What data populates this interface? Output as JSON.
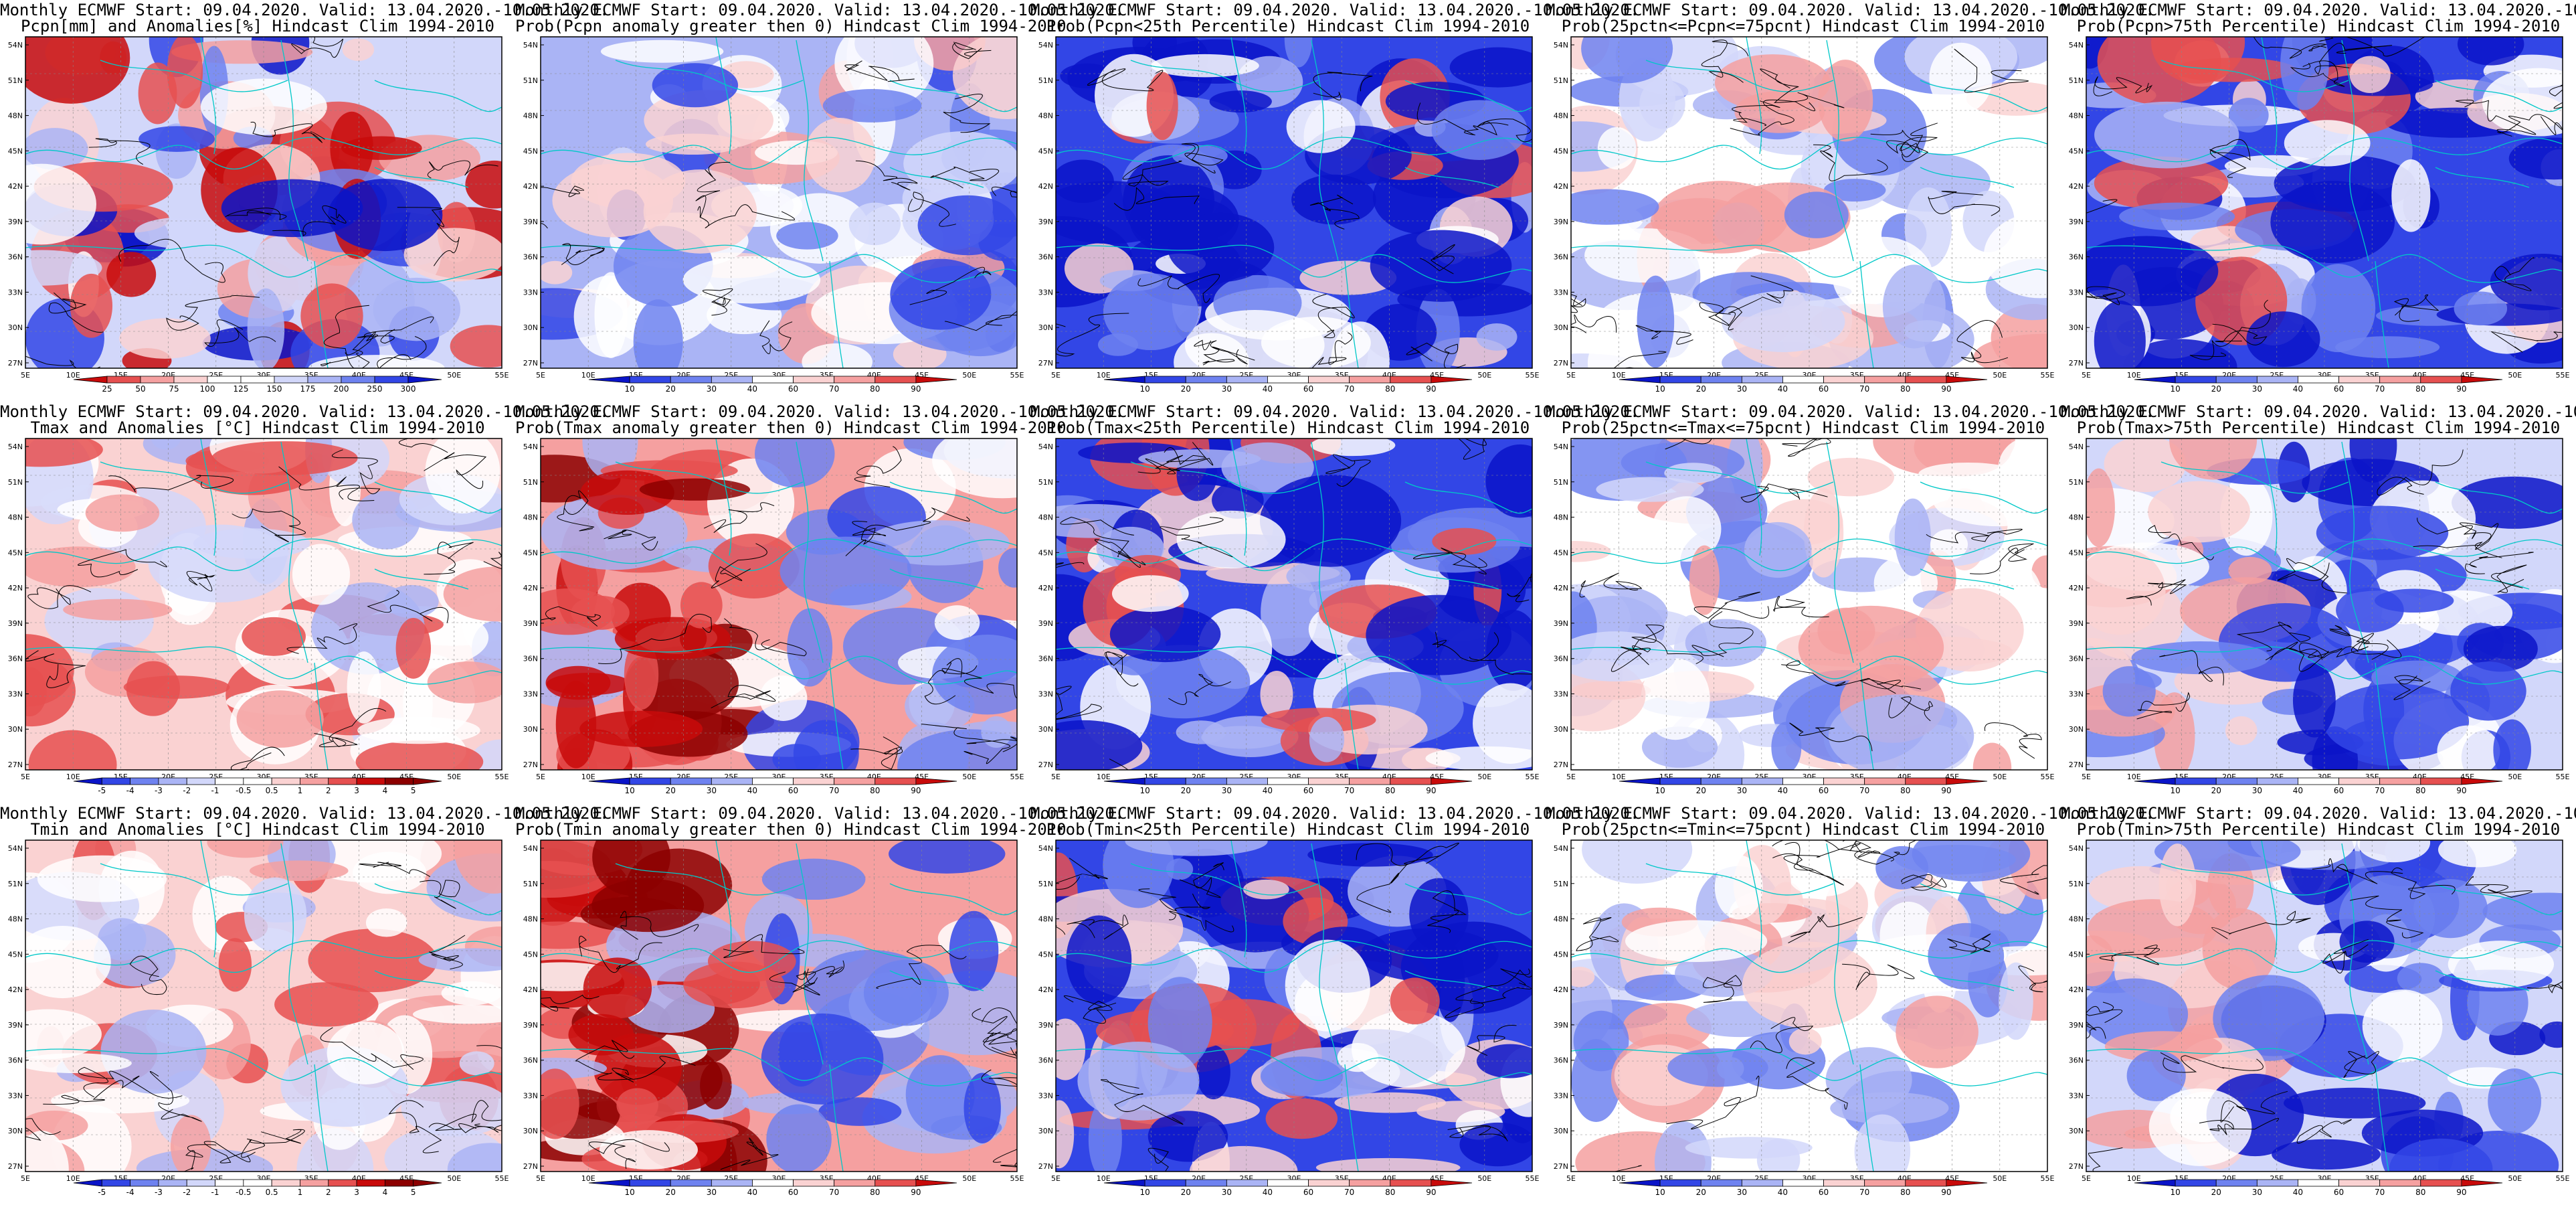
{
  "figure": {
    "header": "Monthly ECMWF Start: 09.04.2020. Valid: 13.04.2020.-10.05.2020.",
    "lat_ticks": [
      "27N",
      "30N",
      "33N",
      "36N",
      "39N",
      "42N",
      "45N",
      "48N",
      "51N",
      "54N"
    ],
    "lon_ticks": [
      "5E",
      "10E",
      "15E",
      "20E",
      "25E",
      "30E",
      "35E",
      "40E",
      "45E",
      "50E",
      "55E"
    ],
    "rows": [
      {
        "variable": "precipitation",
        "panels": [
          {
            "title2": "Pcpn[mm] and Anomalies[%] Hindcast Clim 1994-2010",
            "map_type": "anomaly-percent",
            "dominant": "mixed",
            "colorbar": [
              "25",
              "50",
              "75",
              "100",
              "125",
              "150",
              "175",
              "200",
              "250",
              "300"
            ]
          },
          {
            "title2": "Prob(Pcpn anomaly greater then 0) Hindcast Clim 1994-2010",
            "map_type": "probability",
            "dominant": "blue",
            "colorbar": [
              "10",
              "20",
              "30",
              "40",
              "60",
              "70",
              "80",
              "90"
            ]
          },
          {
            "title2": "Prob(Pcpn<25th Percentile) Hindcast Clim 1994-2010",
            "map_type": "probability",
            "dominant": "blue-strong",
            "colorbar": [
              "10",
              "20",
              "30",
              "40",
              "60",
              "70",
              "80",
              "90"
            ]
          },
          {
            "title2": "Prob(25pctn<=Pcpn<=75pcnt) Hindcast Clim 1994-2010",
            "map_type": "probability",
            "dominant": "light",
            "colorbar": [
              "10",
              "20",
              "30",
              "40",
              "60",
              "70",
              "80",
              "90"
            ]
          },
          {
            "title2": "Prob(Pcpn>75th Percentile) Hindcast Clim 1994-2010",
            "map_type": "probability",
            "dominant": "blue-strong",
            "colorbar": [
              "10",
              "20",
              "30",
              "40",
              "60",
              "70",
              "80",
              "90"
            ]
          }
        ]
      },
      {
        "variable": "tmax",
        "panels": [
          {
            "title2": "Tmax and Anomalies [°C] Hindcast Clim 1994-2010",
            "map_type": "anomaly-degC",
            "dominant": "red-light",
            "colorbar": [
              "-5",
              "-4",
              "-3",
              "-2",
              "-1",
              "-0.5",
              "0.5",
              "1",
              "2",
              "3",
              "4",
              "5"
            ]
          },
          {
            "title2": "Prob(Tmax anomaly greater then 0) Hindcast Clim 1994-2010",
            "map_type": "probability",
            "dominant": "red-west",
            "colorbar": [
              "10",
              "20",
              "30",
              "40",
              "60",
              "70",
              "80",
              "90"
            ]
          },
          {
            "title2": "Prob(Tmax<25th Percentile) Hindcast Clim 1994-2010",
            "map_type": "probability",
            "dominant": "blue-strong",
            "colorbar": [
              "10",
              "20",
              "30",
              "40",
              "60",
              "70",
              "80",
              "90"
            ]
          },
          {
            "title2": "Prob(25pctn<=Tmax<=75pcnt) Hindcast Clim 1994-2010",
            "map_type": "probability",
            "dominant": "light",
            "colorbar": [
              "10",
              "20",
              "30",
              "40",
              "60",
              "70",
              "80",
              "90"
            ]
          },
          {
            "title2": "Prob(Tmax>75th Percentile) Hindcast Clim 1994-2010",
            "map_type": "probability",
            "dominant": "blue-east",
            "colorbar": [
              "10",
              "20",
              "30",
              "40",
              "60",
              "70",
              "80",
              "90"
            ]
          }
        ]
      },
      {
        "variable": "tmin",
        "panels": [
          {
            "title2": "Tmin and Anomalies [°C] Hindcast Clim 1994-2010",
            "map_type": "anomaly-degC",
            "dominant": "red-light",
            "colorbar": [
              "-5",
              "-4",
              "-3",
              "-2",
              "-1",
              "-0.5",
              "0.5",
              "1",
              "2",
              "3",
              "4",
              "5"
            ]
          },
          {
            "title2": "Prob(Tmin anomaly greater then 0) Hindcast Clim 1994-2010",
            "map_type": "probability",
            "dominant": "red-west",
            "colorbar": [
              "10",
              "20",
              "30",
              "40",
              "60",
              "70",
              "80",
              "90"
            ]
          },
          {
            "title2": "Prob(Tmin<25th Percentile) Hindcast Clim 1994-2010",
            "map_type": "probability",
            "dominant": "blue-strong",
            "colorbar": [
              "10",
              "20",
              "30",
              "40",
              "60",
              "70",
              "80",
              "90"
            ]
          },
          {
            "title2": "Prob(25pctn<=Tmin<=75pcnt) Hindcast Clim 1994-2010",
            "map_type": "probability",
            "dominant": "light",
            "colorbar": [
              "10",
              "20",
              "30",
              "40",
              "60",
              "70",
              "80",
              "90"
            ]
          },
          {
            "title2": "Prob(Tmin>75th Percentile) Hindcast Clim 1994-2010",
            "map_type": "probability",
            "dominant": "blue-east",
            "colorbar": [
              "10",
              "20",
              "30",
              "40",
              "60",
              "70",
              "80",
              "90"
            ]
          }
        ]
      }
    ],
    "colors": {
      "deep_blue": "#0a14c8",
      "blue": "#3246e6",
      "mid_blue": "#6e82f0",
      "light_blue": "#aab4f5",
      "pale_blue": "#d2d7fa",
      "white": "#ffffff",
      "pale_red": "#fad2d2",
      "light_red": "#f5a0a0",
      "red": "#e65050",
      "deep_red": "#c80a0a",
      "darkest_red": "#8c0000",
      "coast": "#00c8c8",
      "contour": "#000000"
    }
  }
}
